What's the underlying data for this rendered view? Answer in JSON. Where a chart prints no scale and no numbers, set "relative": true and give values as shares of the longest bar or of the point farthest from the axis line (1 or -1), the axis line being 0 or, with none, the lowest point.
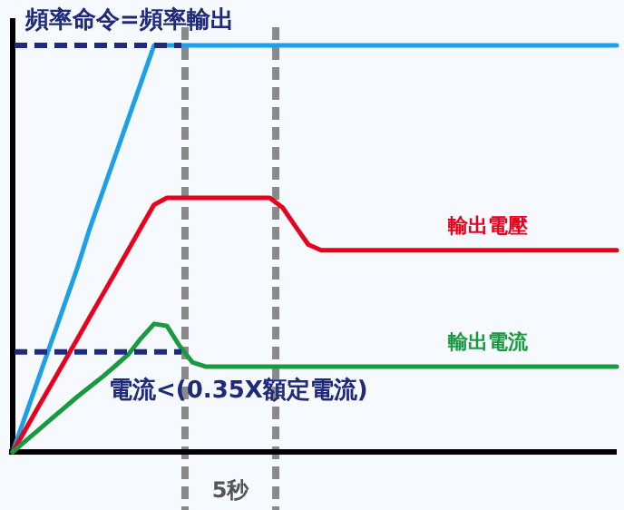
{
  "chart_data": {
    "type": "line",
    "relative": true,
    "categories": [
      null,
      null,
      null,
      null,
      null,
      null,
      null,
      null,
      null,
      null,
      null,
      null,
      null,
      null,
      null,
      null,
      null,
      null,
      null,
      null,
      null,
      null,
      null,
      null,
      null,
      null,
      null,
      null,
      null,
      null,
      null,
      null,
      null,
      null,
      null,
      null,
      null,
      null,
      null,
      null,
      null,
      null,
      null,
      null,
      null,
      null,
      null,
      null
    ],
    "series": [
      {
        "color": "#1ea0e6",
        "values": [
          0,
          0.09,
          0.18,
          0.27,
          0.36,
          0.45,
          0.55,
          0.64,
          0.73,
          0.82,
          0.91,
          1,
          1,
          1,
          1,
          1,
          1,
          1,
          1,
          1,
          1,
          1,
          1,
          1,
          1,
          1,
          1,
          1,
          1,
          1,
          1,
          1,
          1,
          1,
          1,
          1,
          1,
          1,
          1,
          1,
          1,
          1,
          1,
          1,
          1,
          1,
          1,
          1
        ]
      },
      {
        "name": "輸出電壓",
        "color": "#e8001c",
        "values": [
          0,
          0.055,
          0.111,
          0.166,
          0.221,
          0.276,
          0.332,
          0.387,
          0.442,
          0.497,
          0.553,
          0.608,
          0.625,
          0.625,
          0.625,
          0.625,
          0.625,
          0.625,
          0.625,
          0.625,
          0.625,
          0.601,
          0.555,
          0.51,
          0.496,
          0.496,
          0.496,
          0.496,
          0.496,
          0.496,
          0.496,
          0.496,
          0.496,
          0.496,
          0.496,
          0.496,
          0.496,
          0.496,
          0.496,
          0.496,
          0.496,
          0.496,
          0.496,
          0.496,
          0.496,
          0.496,
          0.496,
          0.496
        ]
      },
      {
        "name": "輸出電流",
        "color": "#1a9a40",
        "values": [
          0,
          0.027,
          0.054,
          0.081,
          0.108,
          0.135,
          0.16,
          0.185,
          0.212,
          0.24,
          0.28,
          0.315,
          0.31,
          0.26,
          0.22,
          0.21,
          0.21,
          0.21,
          0.21,
          0.21,
          0.21,
          0.21,
          0.21,
          0.21,
          0.21,
          0.21,
          0.21,
          0.21,
          0.21,
          0.21,
          0.21,
          0.21,
          0.21,
          0.21,
          0.21,
          0.21,
          0.21,
          0.21,
          0.21,
          0.21,
          0.21,
          0.21,
          0.21,
          0.21,
          0.21,
          0.21,
          0.21,
          0.21
        ]
      }
    ],
    "ref_lines": [
      {
        "axis": "y",
        "value": 1,
        "label": "頻率命令=頻率輸出",
        "color": "#1f2a7a",
        "line_style": "dashed"
      },
      {
        "axis": "y",
        "value": 0.246,
        "label": "電流<(0.35X額定電流)",
        "color": "#1f2a7a",
        "line_style": "dashed"
      }
    ],
    "annotations": [
      "5秒"
    ]
  }
}
